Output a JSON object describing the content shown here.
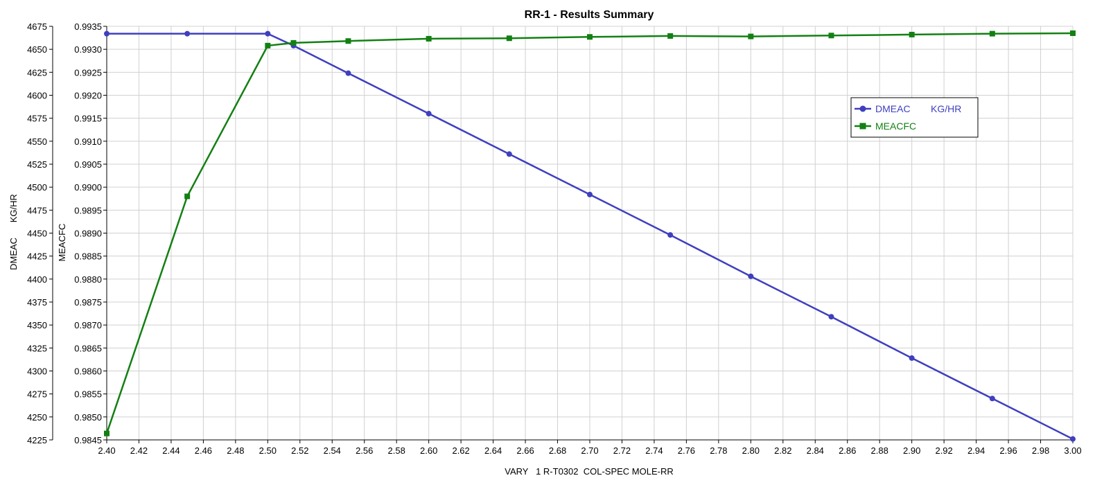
{
  "chart_data": {
    "type": "line",
    "title": "RR-1 - Results Summary",
    "xlabel": "VARY   1 R-T0302  COL-SPEC MOLE-RR",
    "ylabel_left": "DMEAC      KG/HR",
    "ylabel_left2": "MEACFC",
    "xlim": [
      2.4,
      3.0
    ],
    "y1lim": [
      4225,
      4675
    ],
    "y2lim": [
      0.9845,
      0.9935
    ],
    "x_ticks": [
      "2.40",
      "2.42",
      "2.44",
      "2.46",
      "2.48",
      "2.50",
      "2.52",
      "2.54",
      "2.56",
      "2.58",
      "2.60",
      "2.62",
      "2.64",
      "2.66",
      "2.68",
      "2.70",
      "2.72",
      "2.74",
      "2.76",
      "2.78",
      "2.80",
      "2.82",
      "2.84",
      "2.86",
      "2.88",
      "2.90",
      "2.92",
      "2.94",
      "2.96",
      "2.98",
      "3.00"
    ],
    "y1_ticks": [
      "4225",
      "4250",
      "4275",
      "4300",
      "4325",
      "4350",
      "4375",
      "4400",
      "4425",
      "4450",
      "4475",
      "4500",
      "4525",
      "4550",
      "4575",
      "4600",
      "4625",
      "4650",
      "4675"
    ],
    "y2_ticks": [
      "0.9845",
      "0.9850",
      "0.9855",
      "0.9860",
      "0.9865",
      "0.9870",
      "0.9875",
      "0.9880",
      "0.9885",
      "0.9890",
      "0.9895",
      "0.9900",
      "0.9905",
      "0.9910",
      "0.9915",
      "0.9920",
      "0.9925",
      "0.9930",
      "0.9935"
    ],
    "grid": true,
    "legend_position": "upper-right",
    "series": [
      {
        "name": "DMEAC",
        "unit": "KG/HR",
        "axis": "y1",
        "color": "#3f3fbf",
        "marker": "circle",
        "x": [
          2.4,
          2.45,
          2.5,
          2.516,
          2.55,
          2.6,
          2.65,
          2.7,
          2.75,
          2.8,
          2.85,
          2.9,
          2.95,
          3.0
        ],
        "y": [
          4667,
          4667,
          4667,
          4654,
          4624,
          4580,
          4536,
          4492,
          4448,
          4403,
          4359,
          4314,
          4270,
          4226
        ]
      },
      {
        "name": "MEACFC",
        "axis": "y2",
        "color": "#128012",
        "marker": "square",
        "x": [
          2.4,
          2.45,
          2.5,
          2.516,
          2.55,
          2.6,
          2.65,
          2.7,
          2.75,
          2.8,
          2.85,
          2.9,
          2.95,
          3.0
        ],
        "y": [
          0.98464,
          0.9898,
          0.99308,
          0.99314,
          0.99318,
          0.99323,
          0.99324,
          0.99327,
          0.99329,
          0.99328,
          0.9933,
          0.99332,
          0.99334,
          0.99335
        ]
      }
    ]
  }
}
